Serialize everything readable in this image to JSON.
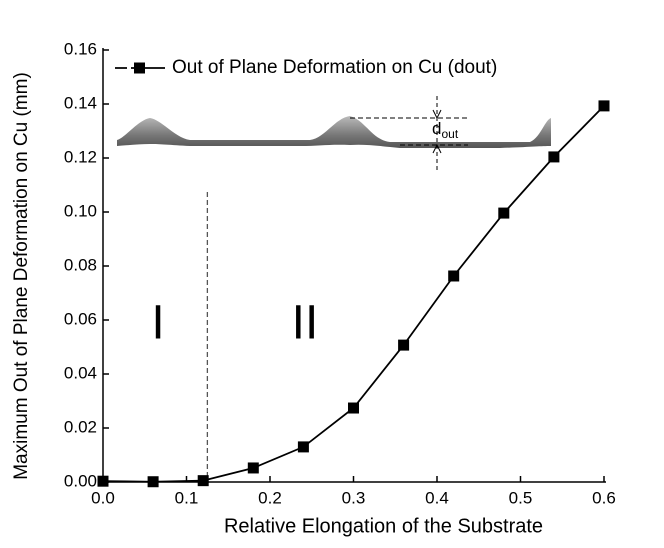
{
  "chart_data": {
    "type": "line",
    "xlabel": "Relative Elongation of the Substrate",
    "ylabel": "Maximum Out of Plane Deformation on Cu (mm)",
    "x": [
      0,
      0.06,
      0.12,
      0.18,
      0.24,
      0.3,
      0.36,
      0.42,
      0.48,
      0.54,
      0.6
    ],
    "series": [
      {
        "name": "Out of Plane Deformation on Cu (dout)",
        "color": "#000000",
        "values": [
          0.0003,
          0.0001,
          0.0005,
          0.0052,
          0.013,
          0.0274,
          0.0507,
          0.0763,
          0.0996,
          0.1204,
          0.1393
        ]
      }
    ],
    "xlim": [
      0,
      0.6
    ],
    "xticks": [
      {
        "value": 0,
        "label": "0.0"
      },
      0.1,
      0.2,
      0.3,
      0.4,
      0.5,
      0.6
    ],
    "ylim": [
      0,
      0.16
    ],
    "yticks": [
      {
        "value": 0,
        "label": "0.00"
      },
      0.02,
      0.04,
      0.06,
      0.08,
      {
        "value": 0.1,
        "label": "0.10"
      },
      0.12,
      0.14,
      0.16
    ],
    "boundary_x": 0.125,
    "region_labels": [
      "I",
      "II"
    ],
    "inset_label": {
      "main": "d",
      "subscript": "out"
    }
  }
}
